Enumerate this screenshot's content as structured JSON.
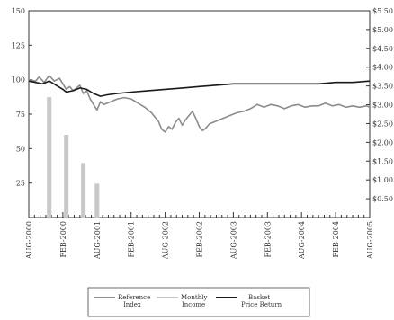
{
  "chart_data": {
    "type": "line",
    "x_tick_labels": [
      "AUG-2000",
      "FEB-2000",
      "AUG-2001",
      "FEB-2001",
      "AUG-2002",
      "FEB-2002",
      "AUG-2003",
      "FEB-2003",
      "AUG-2004",
      "FEB-2004",
      "AUG-2005"
    ],
    "left_axis": {
      "ylim": [
        0,
        150
      ],
      "ticks": [
        "25",
        "50",
        "75",
        "100",
        "125",
        "150"
      ]
    },
    "right_axis": {
      "ylim": [
        0,
        5.5
      ],
      "ticks": [
        "$0.50",
        "$1.00",
        "$1.50",
        "$2.00",
        "$2.50",
        "$3.00",
        "$3.50",
        "$4.00",
        "$4.50",
        "$5.00",
        "$5.50"
      ]
    },
    "series": [
      {
        "name": "Reference Index",
        "color": "#8c8c8c",
        "points": [
          [
            0,
            100
          ],
          [
            0.2,
            99
          ],
          [
            0.3,
            102
          ],
          [
            0.45,
            98
          ],
          [
            0.6,
            103
          ],
          [
            0.75,
            99
          ],
          [
            0.9,
            101
          ],
          [
            1.0,
            97
          ],
          [
            1.1,
            93
          ],
          [
            1.2,
            95
          ],
          [
            1.3,
            92
          ],
          [
            1.4,
            94
          ],
          [
            1.5,
            96
          ],
          [
            1.6,
            90
          ],
          [
            1.7,
            92
          ],
          [
            1.8,
            86
          ],
          [
            1.9,
            82
          ],
          [
            2.0,
            78
          ],
          [
            2.1,
            84
          ],
          [
            2.2,
            82
          ],
          [
            2.4,
            84
          ],
          [
            2.6,
            86
          ],
          [
            2.8,
            87
          ],
          [
            3.0,
            86
          ],
          [
            3.2,
            83
          ],
          [
            3.4,
            80
          ],
          [
            3.6,
            76
          ],
          [
            3.8,
            70
          ],
          [
            3.9,
            64
          ],
          [
            4.0,
            62
          ],
          [
            4.1,
            66
          ],
          [
            4.2,
            64
          ],
          [
            4.3,
            69
          ],
          [
            4.4,
            72
          ],
          [
            4.5,
            67
          ],
          [
            4.6,
            71
          ],
          [
            4.7,
            74
          ],
          [
            4.8,
            77
          ],
          [
            4.9,
            72
          ],
          [
            5.0,
            66
          ],
          [
            5.1,
            63
          ],
          [
            5.2,
            65
          ],
          [
            5.3,
            68
          ],
          [
            5.5,
            70
          ],
          [
            5.7,
            72
          ],
          [
            5.9,
            74
          ],
          [
            6.1,
            76
          ],
          [
            6.3,
            77
          ],
          [
            6.5,
            79
          ],
          [
            6.7,
            82
          ],
          [
            6.9,
            80
          ],
          [
            7.1,
            82
          ],
          [
            7.3,
            81
          ],
          [
            7.5,
            79
          ],
          [
            7.7,
            81
          ],
          [
            7.9,
            82
          ],
          [
            8.1,
            80
          ],
          [
            8.3,
            81
          ],
          [
            8.5,
            81
          ],
          [
            8.7,
            83
          ],
          [
            8.9,
            81
          ],
          [
            9.1,
            82
          ],
          [
            9.3,
            80
          ],
          [
            9.5,
            81
          ],
          [
            9.7,
            80
          ],
          [
            9.9,
            81
          ],
          [
            10,
            80
          ]
        ]
      },
      {
        "name": "Basket Price Return",
        "color": "#1a1a1a",
        "points": [
          [
            0,
            99
          ],
          [
            0.2,
            98
          ],
          [
            0.4,
            97
          ],
          [
            0.6,
            99
          ],
          [
            0.8,
            96
          ],
          [
            1.0,
            93
          ],
          [
            1.1,
            91
          ],
          [
            1.3,
            92
          ],
          [
            1.5,
            94
          ],
          [
            1.7,
            93
          ],
          [
            1.9,
            90
          ],
          [
            2.1,
            88
          ],
          [
            2.3,
            89
          ],
          [
            2.6,
            90
          ],
          [
            3.0,
            91
          ],
          [
            3.5,
            92
          ],
          [
            4.0,
            93
          ],
          [
            4.5,
            94
          ],
          [
            5.0,
            95
          ],
          [
            5.5,
            96
          ],
          [
            6.0,
            97
          ],
          [
            6.5,
            97
          ],
          [
            7.0,
            97
          ],
          [
            7.5,
            97
          ],
          [
            8.0,
            97
          ],
          [
            8.5,
            97
          ],
          [
            9.0,
            98
          ],
          [
            9.5,
            98
          ],
          [
            10,
            99
          ]
        ]
      }
    ],
    "bars": {
      "name": "Monthly Income",
      "color": "#c8c8c8",
      "axis": "right",
      "x": [
        0.6,
        1.1,
        1.6,
        2.0
      ],
      "values": [
        3.2,
        2.2,
        1.45,
        0.9
      ]
    },
    "legend": {
      "position": "bottom-center",
      "entries": [
        {
          "label_line1": "Reference",
          "label_line2": "Index",
          "color": "#8c8c8c"
        },
        {
          "label_line1": "Monthly",
          "label_line2": "Income",
          "color": "#c8c8c8"
        },
        {
          "label_line1": "Basket",
          "label_line2": "Price Return",
          "color": "#1a1a1a"
        }
      ]
    }
  }
}
